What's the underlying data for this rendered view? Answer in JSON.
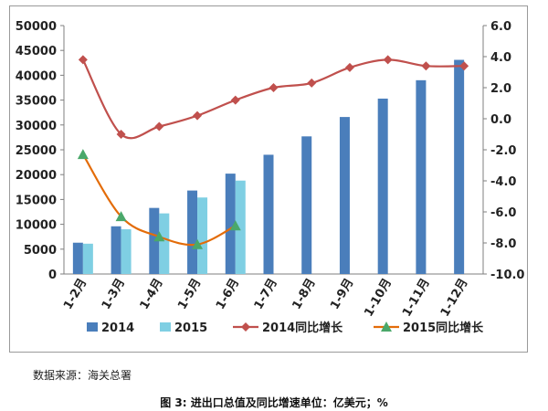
{
  "chart_data": {
    "type": "bar+line",
    "categories": [
      "1-2月",
      "1-3月",
      "1-4月",
      "1-5月",
      "1-6月",
      "1-7月",
      "1-8月",
      "1-9月",
      "1-10月",
      "1-11月",
      "1-12月"
    ],
    "bar_series": [
      {
        "name": "2014",
        "color": "#4a7ebb",
        "values": [
          6300,
          9600,
          13300,
          16800,
          20200,
          24000,
          27700,
          31600,
          35300,
          39000,
          43100
        ]
      },
      {
        "name": "2015",
        "color": "#7fcfe3",
        "values": [
          6100,
          9000,
          12200,
          15400,
          18800,
          null,
          null,
          null,
          null,
          null,
          null
        ]
      }
    ],
    "line_series": [
      {
        "name": "2014同比增长",
        "color": "#c0504d",
        "marker": "diamond",
        "values": [
          3.8,
          -1.0,
          -0.5,
          0.2,
          1.2,
          2.0,
          2.3,
          3.3,
          3.8,
          3.4,
          3.4
        ]
      },
      {
        "name": "2015同比增长",
        "color": "#4aa86a",
        "line_color": "#e36c09",
        "marker": "triangle",
        "values": [
          -2.3,
          -6.3,
          -7.6,
          -8.1,
          -6.9,
          null,
          null,
          null,
          null,
          null,
          null
        ]
      }
    ],
    "y_left": {
      "lim": [
        0,
        50000
      ],
      "ticks": [
        "0",
        "5000",
        "10000",
        "15000",
        "20000",
        "25000",
        "30000",
        "35000",
        "40000",
        "45000",
        "50000"
      ]
    },
    "y_right": {
      "lim": [
        -10,
        6
      ],
      "ticks": [
        "-10.0",
        "-8.0",
        "-6.0",
        "-4.0",
        "-2.0",
        "0.0",
        "2.0",
        "4.0",
        "6.0"
      ]
    },
    "grid": false,
    "legend_position": "bottom"
  },
  "source_text": "数据来源：海关总署",
  "caption": "图 3: 进出口总值及同比增速单位：亿美元；%"
}
